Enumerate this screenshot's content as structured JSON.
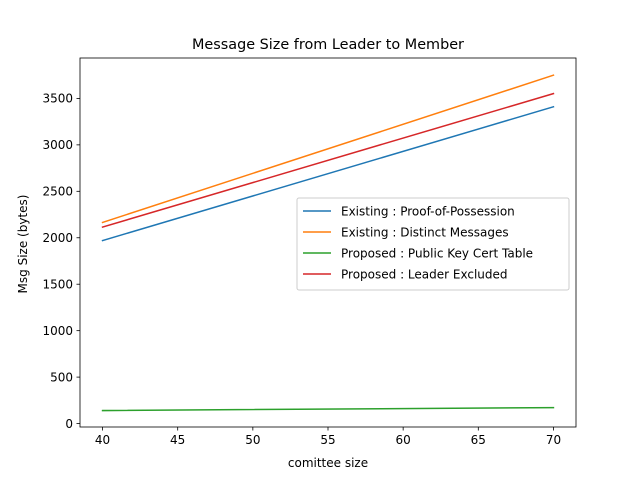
{
  "chart_data": {
    "type": "line",
    "title": "Message Size from Leader to Member",
    "xlabel": "comittee size",
    "ylabel": "Msg Size (bytes)",
    "xlim": [
      38.5,
      71.5
    ],
    "ylim": [
      -37,
      3935
    ],
    "xticks": [
      40,
      45,
      50,
      55,
      60,
      65,
      70
    ],
    "yticks": [
      0,
      500,
      1000,
      1500,
      2000,
      2500,
      3000,
      3500
    ],
    "x": [
      40,
      70
    ],
    "series": [
      {
        "name": "Existing : Proof-of-Possession",
        "values": [
          1970,
          3410
        ],
        "color": "#1f77b4"
      },
      {
        "name": "Existing : Distinct Messages",
        "values": [
          2165,
          3750
        ],
        "color": "#ff7f0e"
      },
      {
        "name": "Proposed : Public Key Cert Table",
        "values": [
          140,
          172
        ],
        "color": "#2ca02c"
      },
      {
        "name": "Proposed : Leader Excluded",
        "values": [
          2115,
          3552
        ],
        "color": "#d62728"
      }
    ],
    "grid": false,
    "legend_position": "center-right"
  }
}
